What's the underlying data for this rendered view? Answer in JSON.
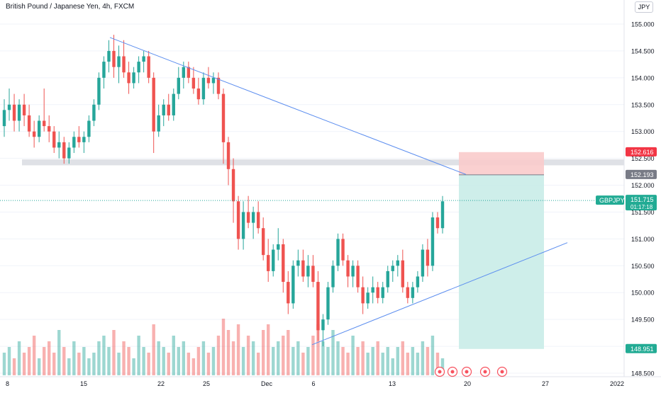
{
  "header": {
    "title": "British Pound / Japanese Yen, 4h, FXCM",
    "currency_button": "JPY"
  },
  "chart_data": {
    "type": "candlestick",
    "symbol": "GBPJPY",
    "y_ticks": [
      "155.000",
      "154.500",
      "154.000",
      "153.500",
      "153.000",
      "152.500",
      "152.000",
      "151.500",
      "151.000",
      "150.500",
      "150.000",
      "149.500",
      "149.000",
      "148.500"
    ],
    "x_ticks": [
      "8",
      "15",
      "22",
      "25",
      "Dec",
      "6",
      "13",
      "20",
      "27",
      "2022"
    ],
    "price_tags": {
      "stop_label": "152.616",
      "entry_label": "152.193",
      "target_label": "148.951",
      "current_symbol": "GBPJPY",
      "current_price": "151.715",
      "countdown": "01:17:18"
    },
    "levels": {
      "stop": 152.616,
      "entry": 152.193,
      "target": 148.951,
      "current": 151.715,
      "resistance_band": [
        152.37,
        152.48
      ]
    },
    "trendlines": [
      {
        "name": "descending resistance",
        "from": [
          154.75,
          0
        ],
        "to": [
          152.2,
          0
        ]
      },
      {
        "name": "ascending support",
        "from": [
          149.03,
          0
        ],
        "to": [
          150.93,
          0
        ]
      }
    ],
    "colors": {
      "up": "#26a69a",
      "down": "#ef5350",
      "trend": "#5b8def",
      "band": "#d1d4dc",
      "risk": "#f9cbcb",
      "reward": "#c9ece8"
    },
    "candles": [
      [
        153.1,
        153.6,
        152.9,
        153.4
      ],
      [
        153.4,
        153.8,
        153.2,
        153.5
      ],
      [
        153.5,
        153.7,
        153.0,
        153.2
      ],
      [
        153.2,
        153.6,
        153.0,
        153.5
      ],
      [
        153.5,
        153.7,
        153.1,
        153.3
      ],
      [
        153.3,
        153.5,
        152.9,
        153.0
      ],
      [
        153.0,
        153.2,
        152.7,
        152.9
      ],
      [
        152.9,
        153.3,
        152.8,
        153.2
      ],
      [
        153.2,
        153.8,
        153.0,
        153.1
      ],
      [
        153.1,
        153.3,
        152.8,
        153.0
      ],
      [
        153.0,
        153.1,
        152.6,
        152.7
      ],
      [
        152.7,
        153.0,
        152.5,
        152.8
      ],
      [
        152.8,
        152.9,
        152.4,
        152.5
      ],
      [
        152.5,
        152.8,
        152.4,
        152.7
      ],
      [
        152.7,
        153.0,
        152.6,
        152.9
      ],
      [
        152.9,
        153.1,
        152.7,
        152.8
      ],
      [
        152.8,
        153.0,
        152.6,
        152.9
      ],
      [
        152.9,
        153.3,
        152.8,
        153.2
      ],
      [
        153.2,
        153.6,
        153.1,
        153.5
      ],
      [
        153.5,
        154.1,
        153.4,
        154.0
      ],
      [
        154.0,
        154.4,
        153.8,
        154.3
      ],
      [
        154.3,
        154.7,
        154.1,
        154.5
      ],
      [
        154.5,
        154.8,
        154.0,
        154.2
      ],
      [
        154.2,
        154.6,
        153.9,
        154.4
      ],
      [
        154.4,
        154.7,
        154.0,
        154.1
      ],
      [
        154.1,
        154.3,
        153.7,
        153.9
      ],
      [
        153.9,
        154.2,
        153.8,
        154.1
      ],
      [
        154.1,
        154.4,
        153.9,
        154.3
      ],
      [
        154.3,
        154.5,
        154.1,
        154.4
      ],
      [
        154.4,
        154.5,
        153.9,
        154.0
      ],
      [
        154.0,
        154.1,
        152.6,
        153.0
      ],
      [
        153.0,
        153.5,
        152.9,
        153.3
      ],
      [
        153.3,
        153.6,
        153.1,
        153.5
      ],
      [
        153.5,
        153.7,
        153.2,
        153.3
      ],
      [
        153.3,
        153.8,
        153.2,
        153.7
      ],
      [
        153.7,
        154.2,
        153.6,
        154.0
      ],
      [
        154.0,
        154.3,
        153.8,
        154.2
      ],
      [
        154.2,
        154.3,
        153.9,
        154.0
      ],
      [
        154.0,
        154.2,
        153.7,
        153.8
      ],
      [
        153.8,
        154.0,
        153.5,
        153.6
      ],
      [
        153.6,
        154.1,
        153.5,
        154.0
      ],
      [
        154.0,
        154.2,
        153.8,
        153.9
      ],
      [
        153.9,
        154.1,
        153.7,
        154.0
      ],
      [
        154.0,
        154.1,
        153.6,
        153.7
      ],
      [
        153.7,
        153.8,
        152.4,
        152.8
      ],
      [
        152.8,
        152.9,
        152.0,
        152.3
      ],
      [
        152.3,
        152.5,
        151.3,
        151.7
      ],
      [
        151.7,
        151.8,
        150.8,
        151.0
      ],
      [
        151.0,
        151.7,
        150.8,
        151.5
      ],
      [
        151.5,
        151.8,
        151.2,
        151.3
      ],
      [
        151.3,
        151.6,
        151.0,
        151.5
      ],
      [
        151.5,
        151.7,
        151.1,
        151.2
      ],
      [
        151.2,
        151.4,
        150.6,
        150.7
      ],
      [
        150.7,
        151.0,
        150.2,
        150.4
      ],
      [
        150.4,
        150.9,
        150.3,
        150.8
      ],
      [
        150.8,
        151.2,
        150.6,
        150.9
      ],
      [
        150.9,
        151.0,
        150.0,
        150.2
      ],
      [
        150.2,
        150.4,
        149.6,
        149.8
      ],
      [
        149.8,
        150.6,
        149.7,
        150.5
      ],
      [
        150.5,
        150.8,
        150.3,
        150.6
      ],
      [
        150.6,
        150.8,
        150.2,
        150.3
      ],
      [
        150.3,
        150.7,
        150.1,
        150.5
      ],
      [
        150.5,
        150.7,
        150.1,
        150.2
      ],
      [
        150.2,
        150.4,
        149.1,
        149.3
      ],
      [
        149.3,
        149.6,
        149.0,
        149.5
      ],
      [
        149.5,
        150.2,
        149.4,
        150.1
      ],
      [
        150.1,
        150.6,
        150.0,
        150.5
      ],
      [
        150.5,
        151.1,
        150.4,
        151.0
      ],
      [
        151.0,
        151.1,
        150.5,
        150.6
      ],
      [
        150.6,
        150.7,
        150.1,
        150.3
      ],
      [
        150.3,
        150.6,
        150.1,
        150.5
      ],
      [
        150.5,
        150.6,
        150.0,
        150.1
      ],
      [
        150.1,
        150.3,
        149.6,
        149.8
      ],
      [
        149.8,
        150.1,
        149.7,
        150.0
      ],
      [
        150.0,
        150.3,
        149.8,
        150.1
      ],
      [
        150.1,
        150.2,
        149.8,
        149.9
      ],
      [
        149.9,
        150.2,
        149.8,
        150.1
      ],
      [
        150.1,
        150.5,
        150.0,
        150.4
      ],
      [
        150.4,
        150.6,
        150.2,
        150.5
      ],
      [
        150.5,
        150.7,
        150.3,
        150.6
      ],
      [
        150.6,
        150.8,
        150.0,
        150.1
      ],
      [
        150.1,
        150.2,
        149.8,
        149.9
      ],
      [
        149.9,
        150.2,
        149.8,
        150.1
      ],
      [
        150.1,
        150.4,
        150.0,
        150.3
      ],
      [
        150.3,
        150.9,
        150.2,
        150.8
      ],
      [
        150.8,
        151.0,
        150.3,
        150.5
      ],
      [
        150.5,
        151.5,
        150.4,
        151.4
      ],
      [
        151.4,
        151.5,
        151.1,
        151.2
      ],
      [
        151.2,
        151.8,
        151.1,
        151.7
      ]
    ],
    "volumes": [
      0.4,
      0.5,
      0.3,
      0.6,
      0.4,
      0.5,
      0.7,
      0.3,
      0.5,
      0.6,
      0.4,
      0.8,
      0.5,
      0.3,
      0.6,
      0.4,
      0.5,
      0.3,
      0.4,
      0.6,
      0.7,
      0.5,
      0.8,
      0.4,
      0.6,
      0.5,
      0.3,
      0.7,
      0.5,
      0.4,
      0.9,
      0.6,
      0.5,
      0.4,
      0.7,
      0.5,
      0.6,
      0.4,
      0.3,
      0.5,
      0.6,
      0.4,
      0.5,
      0.7,
      1.0,
      0.8,
      0.6,
      0.9,
      0.5,
      0.7,
      0.6,
      0.4,
      0.8,
      0.9,
      0.5,
      0.6,
      0.7,
      0.8,
      0.5,
      0.6,
      0.4,
      0.5,
      0.7,
      0.9,
      0.6,
      0.5,
      0.8,
      0.6,
      0.5,
      0.4,
      0.7,
      0.5,
      0.6,
      0.4,
      0.5,
      0.6,
      0.4,
      0.5,
      0.3,
      0.5,
      0.6,
      0.4,
      0.5,
      0.4,
      0.6,
      0.5,
      0.7,
      0.4,
      0.3
    ]
  }
}
